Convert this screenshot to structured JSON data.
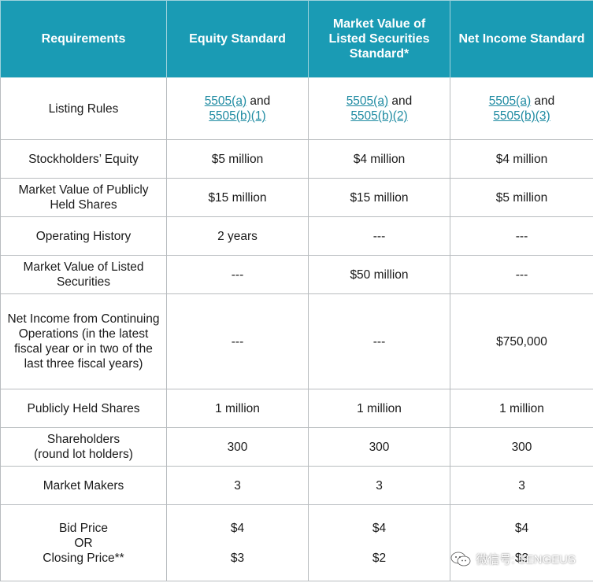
{
  "header": {
    "col1": "Requirements",
    "col2": "Equity Standard",
    "col3": "Market Value of Listed Securities Standard*",
    "col4": "Net Income Standard"
  },
  "rows": {
    "listing_rules": {
      "label": "Listing Rules",
      "equity": {
        "link1": "5505(a)",
        "and": " and",
        "link2": "5505(b)(1)"
      },
      "mvls": {
        "link1": "5505(a)",
        "and": " and",
        "link2": "5505(b)(2)"
      },
      "net_income": {
        "link1": "5505(a)",
        "and": " and",
        "link2": "5505(b)(3)"
      }
    },
    "stockholders_equity": {
      "label": "Stockholders’ Equity",
      "equity": "$5 million",
      "mvls": "$4 million",
      "net_income": "$4 million"
    },
    "mvphs": {
      "label": "Market Value of Publicly Held Shares",
      "equity": "$15 million",
      "mvls": "$15 million",
      "net_income": "$5 million"
    },
    "operating_history": {
      "label": "Operating History",
      "equity": "2 years",
      "mvls": "---",
      "net_income": "---"
    },
    "mvls_row": {
      "label": "Market Value of Listed Securities",
      "equity": "---",
      "mvls": "$50 million",
      "net_income": "---"
    },
    "net_income_row": {
      "label": "Net Income from Continuing Operations (in the latest fiscal year or in two of the last three fiscal years)",
      "equity": "---",
      "mvls": "---",
      "net_income": "$750,000"
    },
    "publicly_held_shares": {
      "label": "Publicly Held Shares",
      "equity": "1 million",
      "mvls": "1 million",
      "net_income": "1 million"
    },
    "shareholders": {
      "label_line1": "Shareholders",
      "label_line2": "(round lot holders)",
      "equity": "300",
      "mvls": "300",
      "net_income": "300"
    },
    "market_makers": {
      "label": "Market Makers",
      "equity": "3",
      "mvls": "3",
      "net_income": "3"
    },
    "price": {
      "label_line1": "Bid Price",
      "label_line2": "OR",
      "label_line3": "Closing Price**",
      "equity_bid": "$4",
      "equity_close": "$3",
      "mvls_bid": "$4",
      "mvls_close": "$2",
      "net_income_bid": "$4",
      "net_income_close": "$3"
    }
  },
  "watermark": {
    "text": "微信号: SENGEUS",
    "icon": "wechat-logo-icon"
  }
}
